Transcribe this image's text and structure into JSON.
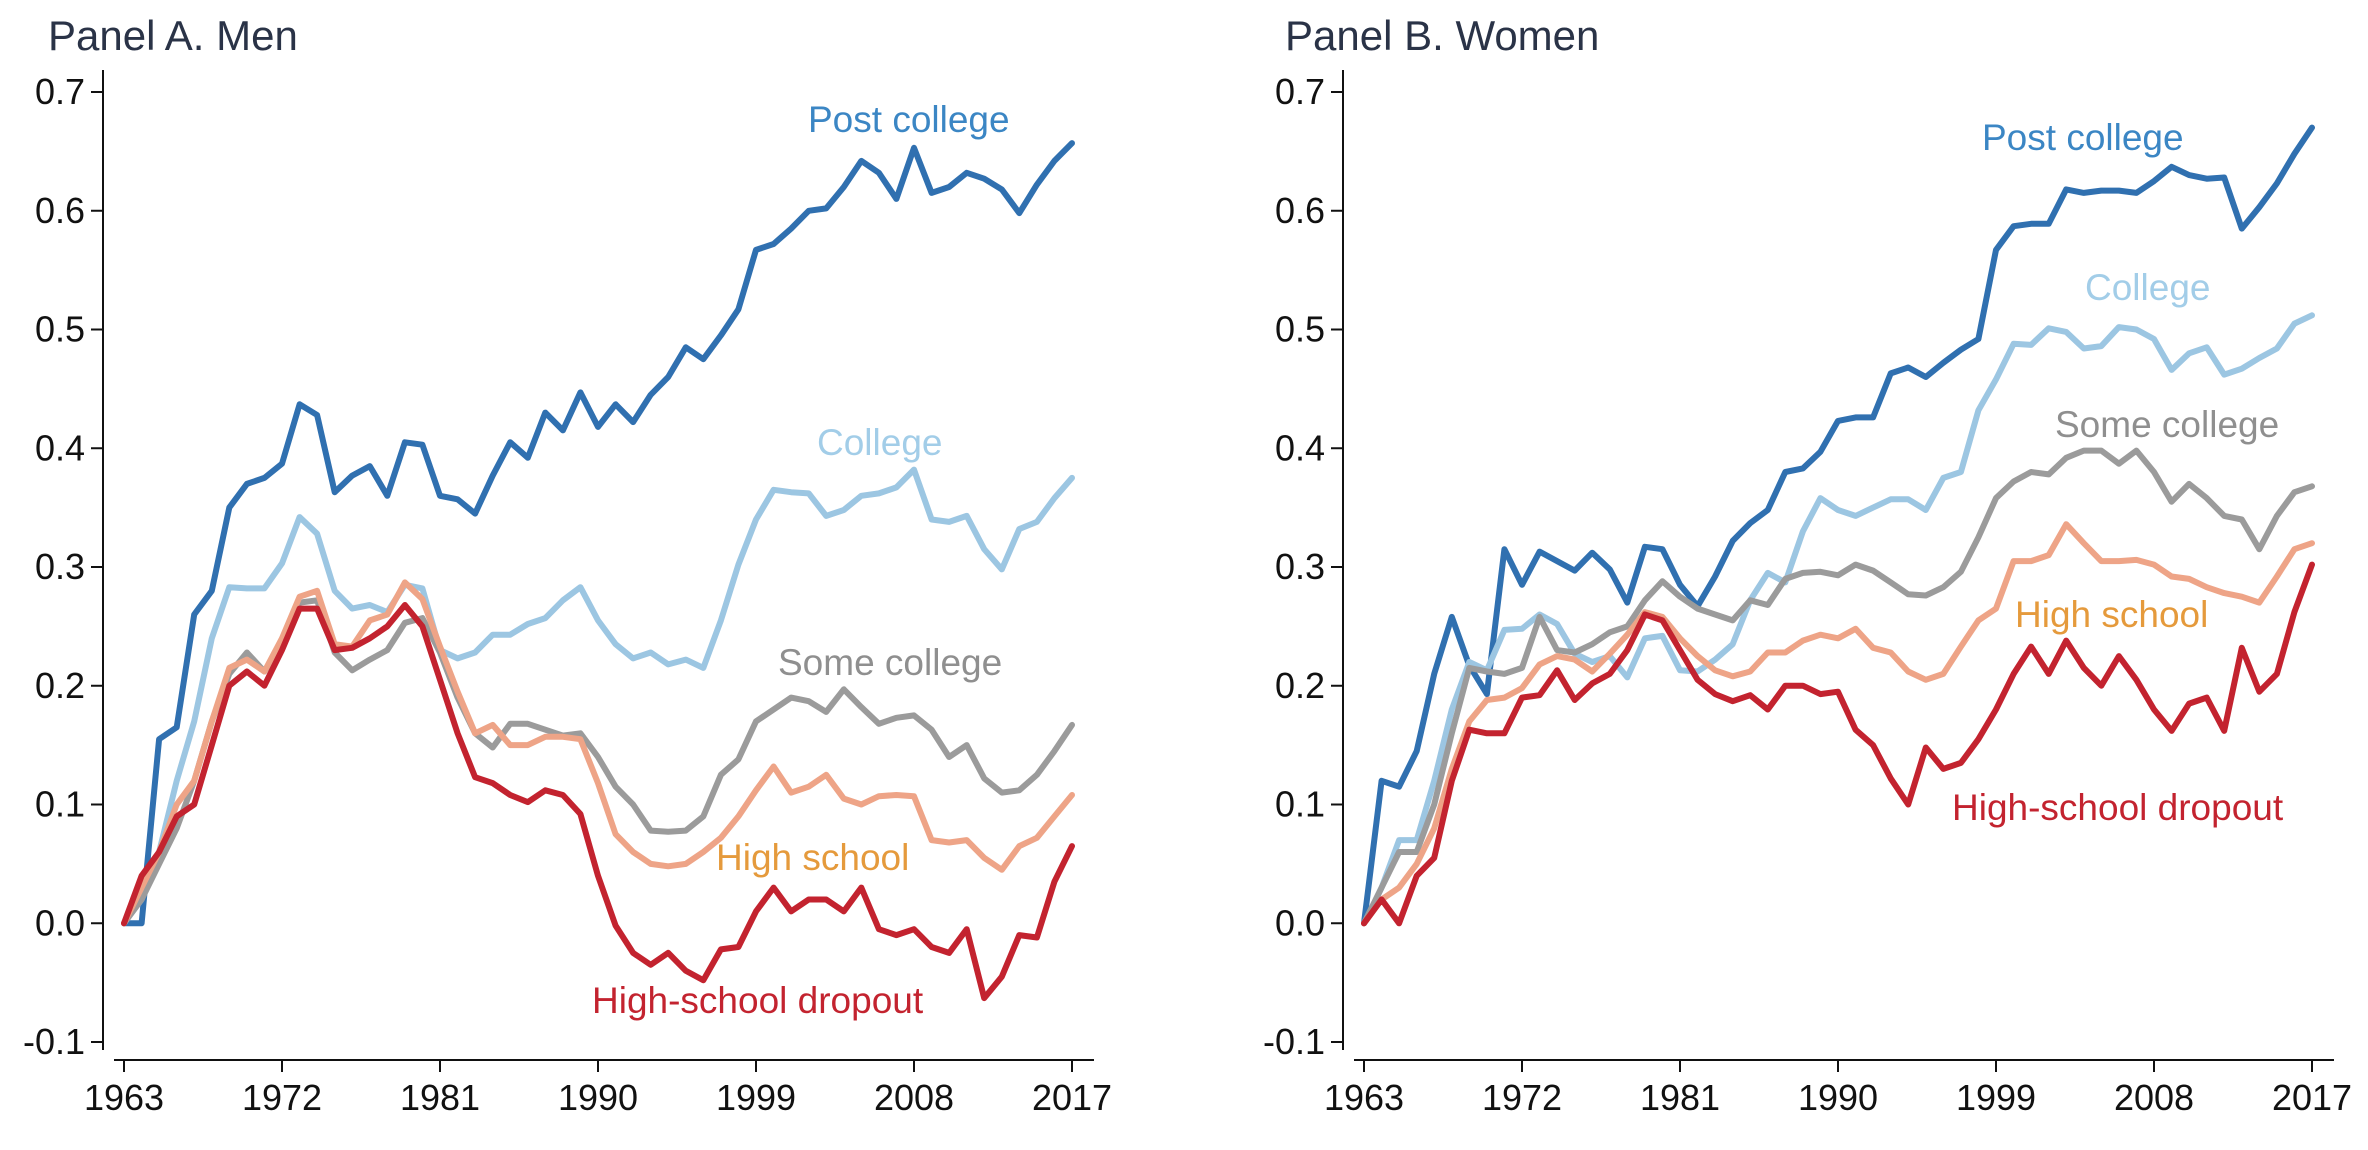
{
  "chart_data": [
    {
      "type": "line",
      "title": "Panel A. Men",
      "xlabel": "",
      "ylabel": "",
      "xlim": [
        1963,
        2017
      ],
      "ylim": [
        -0.1,
        0.7
      ],
      "xticks": [
        "1963",
        "1972",
        "1981",
        "1990",
        "1999",
        "2008",
        "2017"
      ],
      "yticks": [
        "-0.1",
        "0.0",
        "0.1",
        "0.2",
        "0.3",
        "0.4",
        "0.5",
        "0.6",
        "0.7"
      ],
      "grid": false,
      "x_start": 1963,
      "series": [
        {
          "name": "Post college",
          "color": "#3070b0",
          "values": [
            0.0,
            0.0,
            0.155,
            0.165,
            0.26,
            0.28,
            0.35,
            0.37,
            0.375,
            0.387,
            0.437,
            0.428,
            0.363,
            0.377,
            0.385,
            0.36,
            0.405,
            0.403,
            0.36,
            0.357,
            0.345,
            0.377,
            0.405,
            0.392,
            0.43,
            0.415,
            0.447,
            0.418,
            0.437,
            0.422,
            0.445,
            0.46,
            0.485,
            0.475,
            0.495,
            0.517,
            0.567,
            0.572,
            0.585,
            0.6,
            0.602,
            0.62,
            0.642,
            0.632,
            0.61,
            0.653,
            0.615,
            0.62,
            0.632,
            0.627,
            0.618,
            0.598,
            0.622,
            0.642,
            0.657
          ]
        },
        {
          "name": "College",
          "color": "#9cc6e2",
          "values": [
            0.0,
            0.02,
            0.06,
            0.12,
            0.17,
            0.24,
            0.283,
            0.282,
            0.282,
            0.303,
            0.342,
            0.328,
            0.28,
            0.265,
            0.268,
            0.262,
            0.285,
            0.282,
            0.23,
            0.223,
            0.228,
            0.243,
            0.243,
            0.252,
            0.257,
            0.272,
            0.283,
            0.255,
            0.235,
            0.223,
            0.228,
            0.218,
            0.222,
            0.215,
            0.255,
            0.302,
            0.34,
            0.365,
            0.363,
            0.362,
            0.343,
            0.348,
            0.36,
            0.362,
            0.367,
            0.382,
            0.34,
            0.338,
            0.343,
            0.315,
            0.298,
            0.332,
            0.338,
            0.358,
            0.375
          ]
        },
        {
          "name": "Some college",
          "color": "#9b9b9b",
          "values": [
            0.0,
            0.02,
            0.05,
            0.08,
            0.12,
            0.17,
            0.21,
            0.228,
            0.212,
            0.235,
            0.27,
            0.272,
            0.228,
            0.213,
            0.222,
            0.23,
            0.253,
            0.257,
            0.228,
            0.19,
            0.16,
            0.148,
            0.168,
            0.168,
            0.163,
            0.158,
            0.16,
            0.14,
            0.115,
            0.1,
            0.078,
            0.077,
            0.078,
            0.09,
            0.125,
            0.138,
            0.17,
            0.18,
            0.19,
            0.187,
            0.178,
            0.197,
            0.182,
            0.168,
            0.173,
            0.175,
            0.163,
            0.14,
            0.15,
            0.122,
            0.11,
            0.112,
            0.125,
            0.145,
            0.167
          ]
        },
        {
          "name": "High school",
          "color": "#eea487",
          "values": [
            0.0,
            0.03,
            0.06,
            0.1,
            0.12,
            0.17,
            0.215,
            0.222,
            0.212,
            0.24,
            0.275,
            0.28,
            0.235,
            0.233,
            0.255,
            0.26,
            0.287,
            0.273,
            0.233,
            0.195,
            0.16,
            0.167,
            0.15,
            0.15,
            0.157,
            0.157,
            0.155,
            0.118,
            0.075,
            0.06,
            0.05,
            0.048,
            0.05,
            0.06,
            0.072,
            0.09,
            0.112,
            0.132,
            0.11,
            0.115,
            0.125,
            0.105,
            0.1,
            0.107,
            0.108,
            0.107,
            0.07,
            0.068,
            0.07,
            0.055,
            0.045,
            0.065,
            0.072,
            0.09,
            0.108
          ]
        },
        {
          "name": "High-school dropout",
          "color": "#c3232f",
          "values": [
            0.0,
            0.04,
            0.06,
            0.09,
            0.1,
            0.15,
            0.2,
            0.212,
            0.2,
            0.23,
            0.265,
            0.265,
            0.23,
            0.232,
            0.24,
            0.25,
            0.268,
            0.25,
            0.205,
            0.16,
            0.123,
            0.118,
            0.108,
            0.102,
            0.112,
            0.108,
            0.092,
            0.04,
            -0.002,
            -0.025,
            -0.035,
            -0.025,
            -0.04,
            -0.048,
            -0.022,
            -0.02,
            0.01,
            0.03,
            0.01,
            0.02,
            0.02,
            0.01,
            0.03,
            -0.005,
            -0.01,
            -0.005,
            -0.02,
            -0.025,
            -0.005,
            -0.063,
            -0.045,
            -0.01,
            -0.012,
            0.035,
            0.065
          ]
        }
      ],
      "annotations": [
        "Post college",
        "College",
        "Some college",
        "High school",
        "High-school dropout"
      ]
    },
    {
      "type": "line",
      "title": "Panel B. Women",
      "xlabel": "",
      "ylabel": "",
      "xlim": [
        1963,
        2017
      ],
      "ylim": [
        -0.1,
        0.7
      ],
      "xticks": [
        "1963",
        "1972",
        "1981",
        "1990",
        "1999",
        "2008",
        "2017"
      ],
      "yticks": [
        "-0.1",
        "0.0",
        "0.1",
        "0.2",
        "0.3",
        "0.4",
        "0.5",
        "0.6",
        "0.7"
      ],
      "grid": false,
      "x_start": 1963,
      "series": [
        {
          "name": "Post college",
          "color": "#3070b0",
          "values": [
            0.0,
            0.12,
            0.115,
            0.145,
            0.21,
            0.258,
            0.217,
            0.193,
            0.315,
            0.285,
            0.313,
            0.305,
            0.297,
            0.312,
            0.298,
            0.27,
            0.317,
            0.315,
            0.285,
            0.267,
            0.292,
            0.322,
            0.337,
            0.348,
            0.38,
            0.383,
            0.397,
            0.423,
            0.426,
            0.426,
            0.463,
            0.468,
            0.46,
            0.472,
            0.483,
            0.492,
            0.567,
            0.587,
            0.589,
            0.589,
            0.618,
            0.615,
            0.617,
            0.617,
            0.615,
            0.625,
            0.637,
            0.63,
            0.627,
            0.628,
            0.585,
            0.603,
            0.623,
            0.648,
            0.67
          ]
        },
        {
          "name": "College",
          "color": "#9cc6e2",
          "values": [
            0.0,
            0.03,
            0.07,
            0.07,
            0.12,
            0.18,
            0.22,
            0.213,
            0.247,
            0.248,
            0.26,
            0.252,
            0.227,
            0.22,
            0.225,
            0.207,
            0.24,
            0.242,
            0.213,
            0.212,
            0.222,
            0.235,
            0.272,
            0.295,
            0.287,
            0.33,
            0.358,
            0.348,
            0.343,
            0.35,
            0.357,
            0.357,
            0.348,
            0.375,
            0.38,
            0.432,
            0.458,
            0.488,
            0.487,
            0.501,
            0.498,
            0.484,
            0.486,
            0.502,
            0.5,
            0.492,
            0.466,
            0.48,
            0.485,
            0.462,
            0.467,
            0.476,
            0.484,
            0.505,
            0.512
          ]
        },
        {
          "name": "Some college",
          "color": "#9b9b9b",
          "values": [
            0.0,
            0.03,
            0.06,
            0.06,
            0.1,
            0.16,
            0.215,
            0.212,
            0.21,
            0.215,
            0.258,
            0.23,
            0.228,
            0.235,
            0.245,
            0.25,
            0.272,
            0.288,
            0.275,
            0.265,
            0.26,
            0.255,
            0.272,
            0.268,
            0.29,
            0.295,
            0.296,
            0.293,
            0.302,
            0.297,
            0.287,
            0.277,
            0.276,
            0.283,
            0.296,
            0.325,
            0.358,
            0.372,
            0.38,
            0.378,
            0.392,
            0.398,
            0.398,
            0.387,
            0.398,
            0.38,
            0.355,
            0.37,
            0.358,
            0.343,
            0.34,
            0.315,
            0.343,
            0.363,
            0.368
          ]
        },
        {
          "name": "High school",
          "color": "#eea487",
          "values": [
            0.0,
            0.02,
            0.03,
            0.05,
            0.08,
            0.13,
            0.17,
            0.188,
            0.19,
            0.198,
            0.218,
            0.225,
            0.222,
            0.212,
            0.227,
            0.243,
            0.262,
            0.258,
            0.24,
            0.225,
            0.213,
            0.208,
            0.212,
            0.228,
            0.228,
            0.238,
            0.243,
            0.24,
            0.248,
            0.232,
            0.228,
            0.212,
            0.205,
            0.21,
            0.233,
            0.255,
            0.265,
            0.305,
            0.305,
            0.31,
            0.336,
            0.32,
            0.305,
            0.305,
            0.306,
            0.302,
            0.292,
            0.29,
            0.283,
            0.278,
            0.275,
            0.27,
            0.292,
            0.315,
            0.32
          ]
        },
        {
          "name": "High-school dropout",
          "color": "#c3232f",
          "values": [
            0.0,
            0.02,
            0.0,
            0.04,
            0.055,
            0.12,
            0.163,
            0.16,
            0.16,
            0.19,
            0.192,
            0.213,
            0.188,
            0.202,
            0.21,
            0.23,
            0.26,
            0.255,
            0.23,
            0.205,
            0.193,
            0.187,
            0.192,
            0.18,
            0.2,
            0.2,
            0.193,
            0.195,
            0.163,
            0.15,
            0.122,
            0.1,
            0.148,
            0.13,
            0.135,
            0.155,
            0.18,
            0.21,
            0.233,
            0.21,
            0.238,
            0.215,
            0.2,
            0.225,
            0.205,
            0.18,
            0.162,
            0.185,
            0.19,
            0.162,
            0.232,
            0.195,
            0.21,
            0.262,
            0.302
          ]
        }
      ],
      "annotations": [
        "Post college",
        "College",
        "Some college",
        "High school",
        "High-school dropout"
      ]
    }
  ]
}
